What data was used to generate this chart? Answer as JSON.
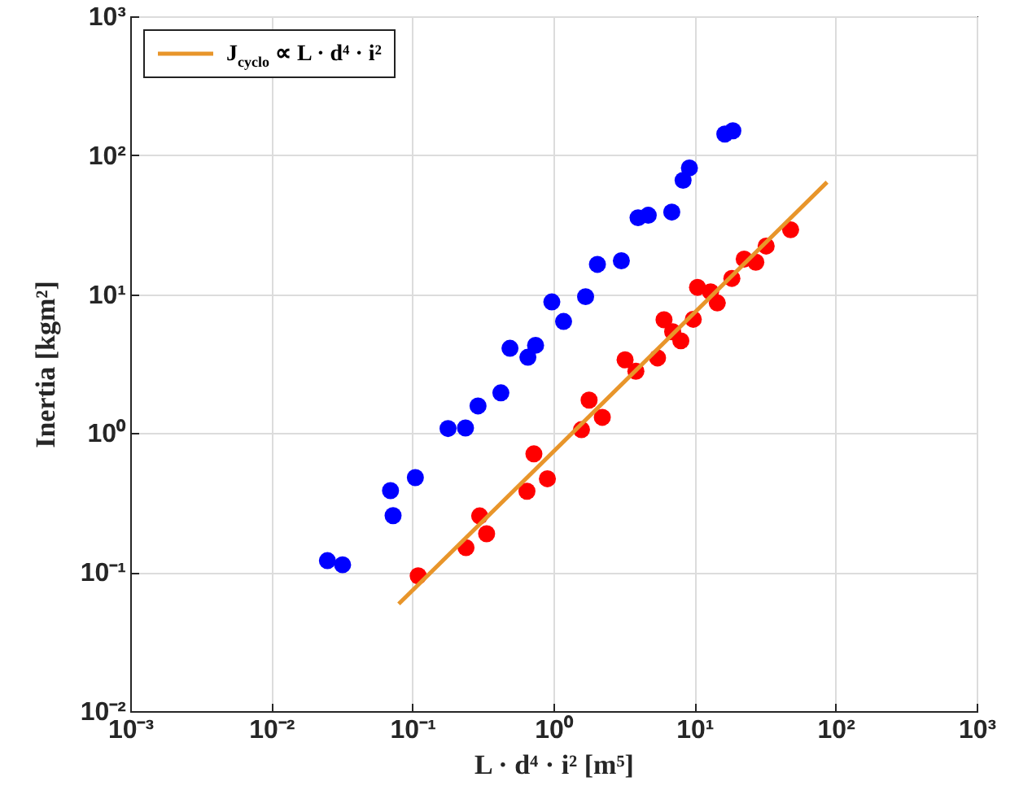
{
  "chart_data": {
    "type": "scatter",
    "xlabel": "L · d⁴ · i² [m⁵]",
    "ylabel": "Inertia [kgm²]",
    "log": "xy",
    "grid": true,
    "legend": "top left",
    "xlim": [
      0.001,
      1000
    ],
    "ylim": [
      0.01,
      1000
    ],
    "xticks": [
      {
        "value": 0.001,
        "label": "10⁻³"
      },
      {
        "value": 0.01,
        "label": "10⁻²"
      },
      {
        "value": 0.1,
        "label": "10⁻¹"
      },
      {
        "value": 1,
        "label": "10⁰"
      },
      {
        "value": 10,
        "label": "10¹"
      },
      {
        "value": 100,
        "label": "10²"
      },
      {
        "value": 1000,
        "label": "10³"
      }
    ],
    "yticks": [
      {
        "value": 0.01,
        "label": "10⁻²"
      },
      {
        "value": 0.1,
        "label": "10⁻¹"
      },
      {
        "value": 1,
        "label": "10⁰"
      },
      {
        "value": 10,
        "label": "10¹"
      },
      {
        "value": 100,
        "label": "10²"
      },
      {
        "value": 1000,
        "label": "10³"
      }
    ],
    "series": [
      {
        "marker": "circle",
        "color": "#0000ff",
        "x": [
          0.025,
          0.032,
          0.07,
          0.073,
          0.105,
          0.179,
          0.238,
          0.292,
          0.424,
          0.492,
          0.659,
          0.747,
          0.974,
          1.18,
          1.69,
          2.05,
          3.03,
          3.98,
          4.7,
          6.9,
          8.3,
          9.2,
          16.4,
          18.7
        ],
        "values": [
          0.121,
          0.113,
          0.386,
          0.255,
          0.479,
          1.08,
          1.09,
          1.57,
          1.95,
          4.08,
          3.52,
          4.29,
          8.8,
          6.37,
          9.6,
          16.4,
          17.4,
          35.5,
          37,
          39,
          66,
          81,
          142,
          150
        ]
      },
      {
        "marker": "circle",
        "color": "#ff0000",
        "x": [
          0.11,
          0.24,
          0.3,
          0.336,
          0.649,
          0.727,
          0.906,
          1.58,
          1.79,
          2.22,
          3.22,
          3.84,
          5.47,
          6.08,
          7.0,
          8.0,
          9.8,
          10.5,
          13.0,
          14.5,
          18.4,
          22.5,
          27.2,
          32.2,
          48
        ],
        "values": [
          0.094,
          0.15,
          0.254,
          0.189,
          0.382,
          0.71,
          0.47,
          1.06,
          1.73,
          1.3,
          3.37,
          2.79,
          3.48,
          6.55,
          5.37,
          4.62,
          6.6,
          11.2,
          10.4,
          8.65,
          13.0,
          17.9,
          17.0,
          22.2,
          29.1
        ]
      },
      {
        "type": "line",
        "name": "J$_{cyclo}$ ∝ L · d⁴ · i²",
        "color": "#e8952a",
        "x": [
          0.08,
          87
        ],
        "values": [
          0.059,
          64
        ]
      }
    ]
  }
}
